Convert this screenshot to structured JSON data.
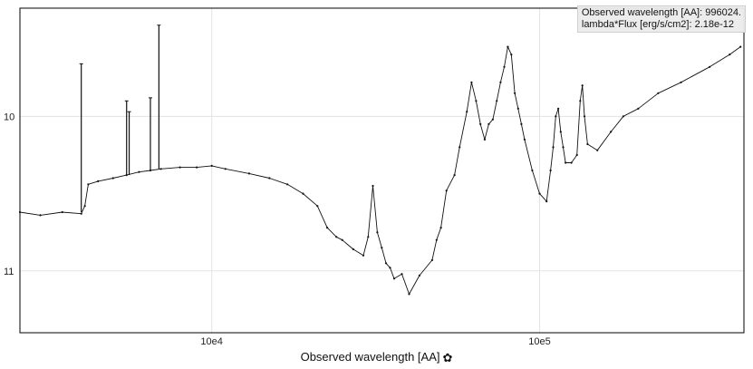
{
  "chart_data": {
    "type": "line",
    "title": "",
    "xlabel": "Observed wavelength [AA]",
    "ylabel": "",
    "x_scale": "log",
    "xlim": [
      2600,
      420000
    ],
    "ylim": [
      11.4,
      9.3
    ],
    "y_inverted": true,
    "grid": true,
    "x_ticks": [
      {
        "value": 10000,
        "label": "10e4"
      },
      {
        "value": 100000,
        "label": "10e5"
      }
    ],
    "y_ticks": [
      {
        "value": 10,
        "label": "10"
      },
      {
        "value": 11,
        "label": "11"
      }
    ],
    "series": [
      {
        "name": "",
        "x": [
          2600,
          3000,
          3500,
          4000,
          4100,
          4200,
          4500,
          5000,
          5500,
          6000,
          6500,
          7000,
          8000,
          9000,
          10000,
          11000,
          13000,
          15000,
          17000,
          19000,
          21000,
          22500,
          24000,
          25000,
          27000,
          29000,
          30000,
          31000,
          32000,
          33000,
          34000,
          35000,
          36000,
          38000,
          40000,
          43000,
          47000,
          48500,
          50000,
          52000,
          55000,
          57000,
          60000,
          62000,
          64000,
          66000,
          68000,
          70000,
          72000,
          74000,
          76000,
          78000,
          80000,
          82000,
          84000,
          86000,
          88000,
          90000,
          95000,
          100000,
          105000,
          108000,
          110000,
          112000,
          114000,
          116000,
          118000,
          120000,
          125000,
          130000,
          133000,
          135000,
          137000,
          140000,
          150000,
          165000,
          180000,
          200000,
          230000,
          270000,
          330000,
          380000,
          410000
        ],
        "y": [
          10.62,
          10.64,
          10.62,
          10.63,
          10.58,
          10.44,
          10.42,
          10.4,
          10.38,
          10.36,
          10.35,
          10.34,
          10.33,
          10.33,
          10.32,
          10.34,
          10.37,
          10.4,
          10.44,
          10.5,
          10.58,
          10.72,
          10.78,
          10.8,
          10.86,
          10.9,
          10.78,
          10.45,
          10.75,
          10.85,
          10.95,
          10.98,
          11.05,
          11.02,
          11.15,
          11.03,
          10.93,
          10.8,
          10.72,
          10.48,
          10.38,
          10.2,
          9.97,
          9.78,
          9.9,
          10.05,
          10.15,
          10.05,
          10.02,
          9.9,
          9.78,
          9.68,
          9.55,
          9.6,
          9.85,
          9.95,
          10.05,
          10.15,
          10.35,
          10.5,
          10.55,
          10.35,
          10.2,
          10.0,
          9.95,
          10.1,
          10.2,
          10.3,
          10.3,
          10.25,
          9.9,
          9.8,
          10.0,
          10.18,
          10.22,
          10.1,
          10.0,
          9.95,
          9.85,
          9.78,
          9.68,
          9.6,
          9.55
        ]
      },
      {
        "name": "",
        "x": [
          4000,
          4000,
          5500,
          5500,
          5600,
          5600,
          6500,
          6500,
          6900,
          6900
        ],
        "y": [
          10.62,
          9.66,
          10.38,
          9.9,
          10.38,
          9.97,
          10.35,
          9.88,
          10.34,
          9.41
        ]
      }
    ]
  },
  "readout": {
    "x_line": "Observed wavelength [AA]: 996024.",
    "y_line": "lambda*Flux [erg/s/cm2]: 2.18e-12"
  },
  "axis": {
    "xlabel": "Observed wavelength [AA]",
    "settings_icon": "gear-icon"
  }
}
